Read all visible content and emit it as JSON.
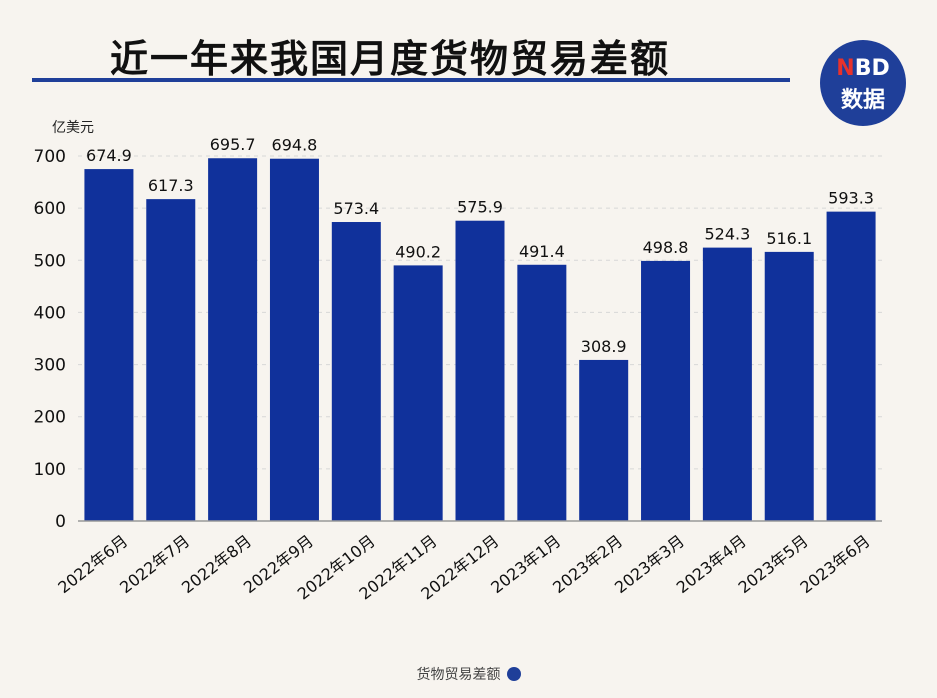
{
  "header": {
    "title": "近一年来我国月度货物贸易差额"
  },
  "logo": {
    "line1_n": "N",
    "line1_rest": "BD",
    "line2": "数据"
  },
  "colors": {
    "bar": "#10319b",
    "grid": "#d7d7d7",
    "title_rule": "#1f3f99"
  },
  "chart_data": {
    "type": "bar",
    "title": "近一年来我国月度货物贸易差额",
    "ylabel": "亿美元",
    "ylim": [
      0,
      700
    ],
    "yticks": [
      0,
      100,
      200,
      300,
      400,
      500,
      600,
      700
    ],
    "grid": true,
    "legend_position": "bottom-center",
    "categories": [
      "2022年6月",
      "2022年7月",
      "2022年8月",
      "2022年9月",
      "2022年10月",
      "2022年11月",
      "2022年12月",
      "2023年1月",
      "2023年2月",
      "2023年3月",
      "2023年4月",
      "2023年5月",
      "2023年6月"
    ],
    "series": [
      {
        "name": "货物贸易差额",
        "values": [
          674.9,
          617.3,
          695.7,
          694.8,
          573.4,
          490.2,
          575.9,
          491.4,
          308.9,
          498.8,
          524.3,
          516.1,
          593.3
        ],
        "labels": [
          "674.9",
          "617.3",
          "695.7",
          "694.8",
          "573.4",
          "490.2",
          "575.9",
          "491.4",
          "308.9",
          "498.8",
          "524.3",
          "516.1",
          "593.3"
        ]
      }
    ]
  }
}
